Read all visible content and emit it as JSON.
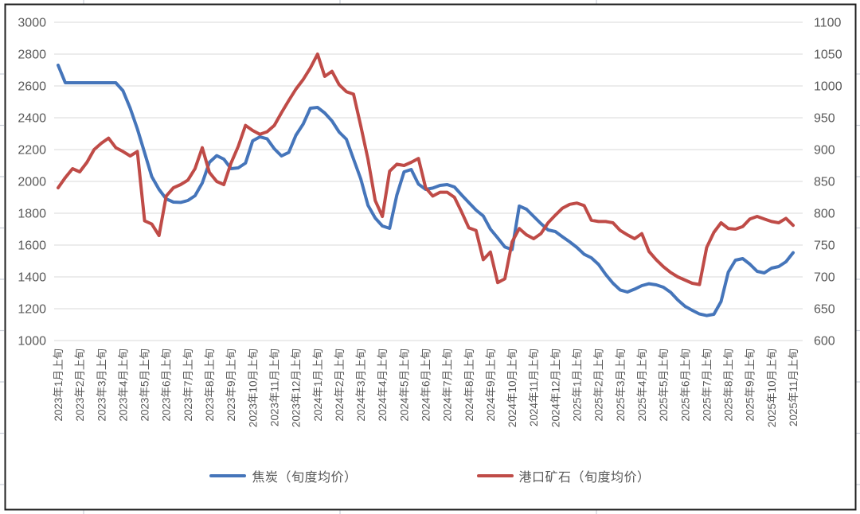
{
  "chart_data": {
    "type": "line",
    "title": "",
    "frequency": "旬 (3 points per month)",
    "x_tick_labels": [
      "2023年1月上旬",
      "2023年2月上旬",
      "2023年3月上旬",
      "2023年4月上旬",
      "2023年5月上旬",
      "2023年6月上旬",
      "2023年7月上旬",
      "2023年8月上旬",
      "2023年9月上旬",
      "2023年10月上旬",
      "2023年11月上旬",
      "2023年12月上旬",
      "2024年1月上旬",
      "2024年2月上旬",
      "2024年3月上旬",
      "2024年4月上旬",
      "2024年5月上旬",
      "2024年6月上旬",
      "2024年7月上旬",
      "2024年8月上旬",
      "2024年9月上旬",
      "2024年10月上旬",
      "2024年11月上旬",
      "2024年12月上旬",
      "2025年1月上旬",
      "2025年2月上旬",
      "2025年3月上旬",
      "2025年4月上旬",
      "2025年5月上旬",
      "2025年6月上旬",
      "2025年7月上旬",
      "2025年8月上旬",
      "2025年9月上旬",
      "2025年10月上旬",
      "2025年11月上旬"
    ],
    "left_axis": {
      "min": 1000,
      "max": 3000,
      "step": 200,
      "tick_labels": [
        "3000",
        "2800",
        "2600",
        "2400",
        "2200",
        "2000",
        "1800",
        "1600",
        "1400",
        "1200",
        "1000"
      ]
    },
    "right_axis": {
      "min": 600,
      "max": 1100,
      "step": 50,
      "tick_labels": [
        "1100",
        "1050",
        "1000",
        "950",
        "900",
        "850",
        "800",
        "750",
        "700",
        "650",
        "600"
      ]
    },
    "grid": true,
    "legend_position": "bottom",
    "series": [
      {
        "name": "焦炭（旬度均价）",
        "axis": "left",
        "color": "#4575BA",
        "values": [
          2730,
          2620,
          2620,
          2620,
          2620,
          2620,
          2620,
          2620,
          2620,
          2570,
          2460,
          2330,
          2180,
          2030,
          1950,
          1890,
          1870,
          1868,
          1880,
          1910,
          1990,
          2120,
          2162,
          2140,
          2080,
          2085,
          2115,
          2255,
          2280,
          2268,
          2205,
          2160,
          2182,
          2290,
          2360,
          2460,
          2465,
          2430,
          2380,
          2310,
          2265,
          2140,
          2015,
          1850,
          1770,
          1720,
          1705,
          1913,
          2060,
          2075,
          1983,
          1950,
          1958,
          1975,
          1980,
          1965,
          1915,
          1867,
          1820,
          1783,
          1700,
          1645,
          1588,
          1572,
          1845,
          1825,
          1780,
          1735,
          1695,
          1685,
          1652,
          1620,
          1585,
          1542,
          1520,
          1478,
          1415,
          1360,
          1318,
          1305,
          1323,
          1345,
          1357,
          1350,
          1335,
          1303,
          1255,
          1215,
          1190,
          1167,
          1157,
          1165,
          1245,
          1430,
          1505,
          1515,
          1480,
          1435,
          1425,
          1455,
          1465,
          1495,
          1552
        ]
      },
      {
        "name": "港口矿石（旬度均价）",
        "axis": "right",
        "color": "#BF4B47",
        "values": [
          840,
          856,
          870,
          865,
          880,
          900,
          910,
          918,
          903,
          897,
          890,
          897,
          788,
          783,
          765,
          827,
          840,
          845,
          852,
          870,
          903,
          864,
          850,
          845,
          879,
          905,
          938,
          930,
          924,
          928,
          938,
          958,
          977,
          995,
          1010,
          1028,
          1050,
          1015,
          1023,
          1002,
          991,
          987,
          937,
          885,
          820,
          795,
          866,
          877,
          875,
          880,
          886,
          840,
          827,
          833,
          833,
          825,
          802,
          777,
          773,
          727,
          739,
          691,
          697,
          755,
          776,
          766,
          760,
          768,
          785,
          797,
          808,
          814,
          816,
          812,
          789,
          787,
          787,
          785,
          773,
          766,
          760,
          768,
          740,
          727,
          716,
          707,
          700,
          695,
          690,
          688,
          746,
          770,
          785,
          776,
          775,
          779,
          791,
          795,
          791,
          787,
          785,
          792,
          781
        ]
      }
    ]
  },
  "legend": {
    "items": [
      {
        "label": "焦炭（旬度均价）",
        "color": "#4575BA"
      },
      {
        "label": "港口矿石（旬度均价）",
        "color": "#BF4B47"
      }
    ]
  },
  "frame": {
    "background": "#ffffff",
    "border_color": "#1f1f1f",
    "grid_color": "#d9d9d9",
    "label_color": "#595959",
    "edge_stub_color": "#c9ced8"
  }
}
